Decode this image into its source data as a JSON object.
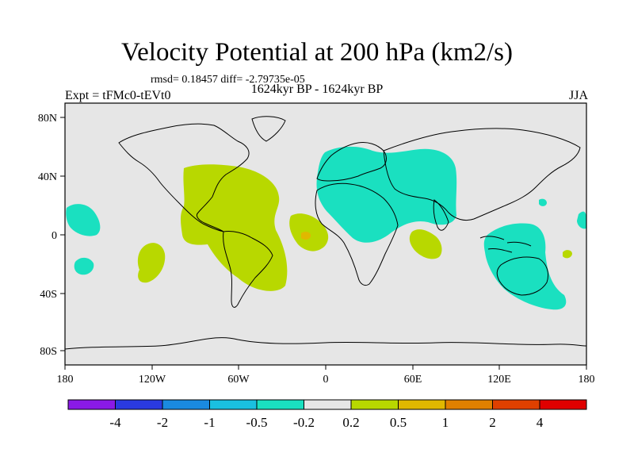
{
  "header": {
    "title": "Velocity Potential at 200 hPa (km2/s)",
    "stats": "rmsd= 0.18457 diff= -2.79735e-05",
    "period": "1624kyr BP - 1624kyr BP",
    "experiment": "Expt = tFMc0-tEVt0",
    "season": "JJA"
  },
  "map": {
    "lat_labels": [
      "80N",
      "40N",
      "0",
      "40S",
      "80S"
    ],
    "lon_labels": [
      "180",
      "120W",
      "60W",
      "0",
      "60E",
      "120E",
      "180"
    ],
    "background_color": "#e6e6e6"
  },
  "colorbar": {
    "labels": [
      "-4",
      "-2",
      "-1",
      "-0.5",
      "-0.2",
      "0.2",
      "0.5",
      "1",
      "2",
      "4"
    ],
    "colors": [
      "#8a1ae6",
      "#2a3ae0",
      "#1a8ae0",
      "#1ac0e0",
      "#1ae0c0",
      "#e6e6e6",
      "#b8d800",
      "#e0b800",
      "#e08000",
      "#e04000",
      "#e00000"
    ]
  },
  "regions": [
    {
      "name": "western-hemisphere-positive",
      "sign": "positive"
    },
    {
      "name": "eastern-hemisphere-negative",
      "sign": "negative"
    },
    {
      "name": "indo-pacific-negative",
      "sign": "negative"
    }
  ]
}
